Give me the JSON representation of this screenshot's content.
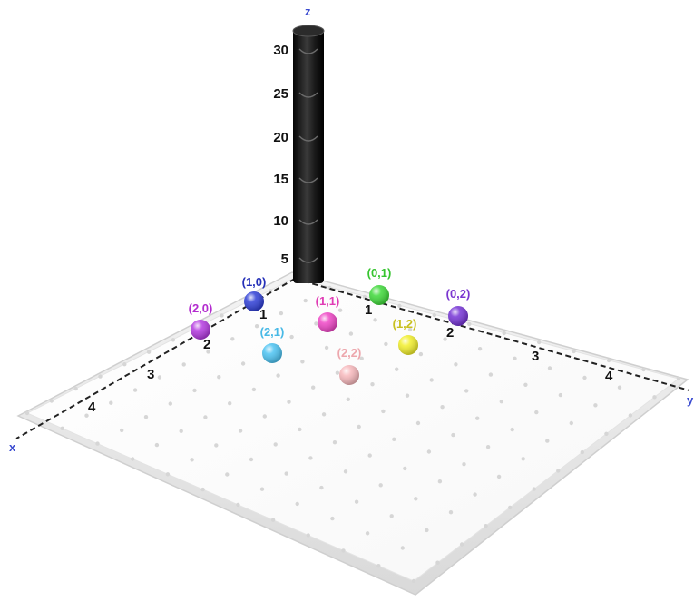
{
  "axes": {
    "x_name": "x",
    "y_name": "y",
    "z_name": "z",
    "x_ticks": [
      "1",
      "2",
      "3",
      "4"
    ],
    "y_ticks": [
      "1",
      "2",
      "3",
      "4"
    ],
    "z_ticks": [
      "5",
      "10",
      "15",
      "20",
      "25",
      "30"
    ]
  },
  "points": [
    {
      "label": "(1,0)",
      "color": "#2f3fd6",
      "label_color": "#2530b8"
    },
    {
      "label": "(2,0)",
      "color": "#b43ae0",
      "label_color": "#b32ccf"
    },
    {
      "label": "(0,1)",
      "color": "#3fd93a",
      "label_color": "#36c42f"
    },
    {
      "label": "(1,1)",
      "color": "#ef46c6",
      "label_color": "#e03cb5"
    },
    {
      "label": "(2,1)",
      "color": "#4cc3f2",
      "label_color": "#48b9e6"
    },
    {
      "label": "(0,2)",
      "color": "#7634d6",
      "label_color": "#7a35d0"
    },
    {
      "label": "(1,2)",
      "color": "#f2ef2c",
      "label_color": "#c8c020"
    },
    {
      "label": "(2,2)",
      "color": "#f7b8bc",
      "label_color": "#eda7ad"
    }
  ]
}
